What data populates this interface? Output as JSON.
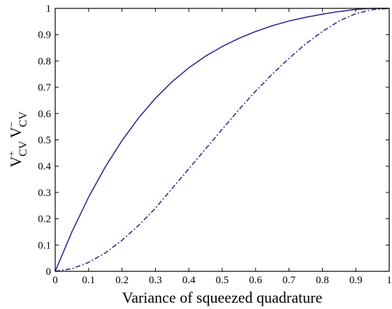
{
  "chart_data": {
    "type": "line",
    "title": "",
    "xlabel": "Variance of squeezed quadrature",
    "ylabel": {
      "part1_base": "V",
      "part1_sup": "+",
      "part1_sub": "CV",
      "part2_base": "V",
      "part2_sup": "−",
      "part2_sub": "CV"
    },
    "xlim": [
      0,
      1
    ],
    "ylim": [
      0,
      1
    ],
    "xticks": [
      0,
      0.1,
      0.2,
      0.3,
      0.4,
      0.5,
      0.6,
      0.7,
      0.8,
      0.9,
      1
    ],
    "xtick_labels": [
      "0",
      "0.1",
      "0.2",
      "0.3",
      "0.4",
      "0.5",
      "0.6",
      "0.7",
      "0.8",
      "0.9",
      "1"
    ],
    "yticks": [
      0,
      0.1,
      0.2,
      0.3,
      0.4,
      0.5,
      0.6,
      0.7,
      0.8,
      0.9,
      1
    ],
    "ytick_labels": [
      "0",
      "0.1",
      "0.2",
      "0.3",
      "0.4",
      "0.5",
      "0.6",
      "0.7",
      "0.8",
      "0.9",
      "1"
    ],
    "grid": false,
    "color": "#2b2b8f",
    "series": [
      {
        "style": "solid",
        "x": [
          0,
          0.02,
          0.05,
          0.1,
          0.15,
          0.2,
          0.25,
          0.3,
          0.35,
          0.4,
          0.45,
          0.5,
          0.55,
          0.6,
          0.65,
          0.7,
          0.75,
          0.8,
          0.85,
          0.9,
          0.95,
          1
        ],
        "y": [
          0,
          0.06,
          0.15,
          0.282,
          0.397,
          0.497,
          0.584,
          0.658,
          0.721,
          0.774,
          0.818,
          0.855,
          0.886,
          0.912,
          0.934,
          0.952,
          0.966,
          0.978,
          0.988,
          0.996,
          1.0,
          1.0
        ]
      },
      {
        "style": "dashdot",
        "x": [
          0,
          0.05,
          0.1,
          0.15,
          0.2,
          0.25,
          0.3,
          0.35,
          0.4,
          0.45,
          0.5,
          0.55,
          0.6,
          0.65,
          0.7,
          0.75,
          0.8,
          0.85,
          0.9,
          0.95,
          1
        ],
        "y": [
          0,
          0.01,
          0.034,
          0.07,
          0.118,
          0.175,
          0.24,
          0.315,
          0.39,
          0.465,
          0.54,
          0.615,
          0.685,
          0.75,
          0.81,
          0.865,
          0.912,
          0.952,
          0.98,
          0.995,
          1.0
        ]
      }
    ]
  }
}
